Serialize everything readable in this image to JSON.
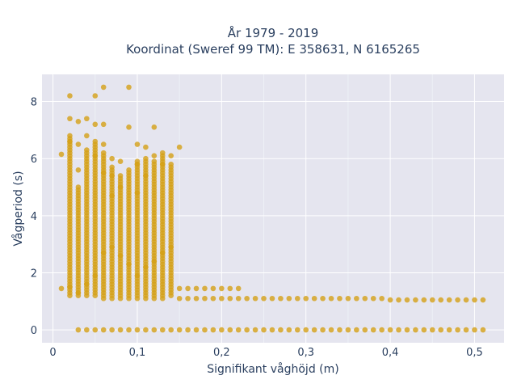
{
  "chart_data": {
    "type": "scatter",
    "title_line1": "År 1979 - 2019",
    "title_line2": "Koordinat (Sweref 99 TM): E 358631, N 6165265",
    "xlabel": "Signifikant våghöjd (m)",
    "ylabel": "Vågperiod (s)",
    "xlim": [
      -0.013,
      0.535
    ],
    "ylim": [
      -0.45,
      8.95
    ],
    "x_ticks": [
      0,
      0.1,
      0.2,
      0.3,
      0.4,
      0.5
    ],
    "x_tick_labels": [
      "0",
      "0,1",
      "0,2",
      "0,3",
      "0,4",
      "0,5"
    ],
    "y_ticks": [
      0,
      2,
      4,
      6,
      8
    ],
    "y_tick_labels": [
      "0",
      "2",
      "4",
      "6",
      "8"
    ],
    "grid": true,
    "marker_color": "#d4a017",
    "plot_bg": "#e5e5ef",
    "series": [
      {
        "x": [
          0.01,
          0.02,
          0.02,
          0.02,
          0.03,
          0.03,
          0.03,
          0.04,
          0.04,
          0.05,
          0.05,
          0.05,
          0.06,
          0.06,
          0.06,
          0.06,
          0.07,
          0.07,
          0.07,
          0.08,
          0.08,
          0.09,
          0.09,
          0.1,
          0.1,
          0.1,
          0.11,
          0.11,
          0.12,
          0.12,
          0.13,
          0.14,
          0.15,
          0.01,
          0.02,
          0.03,
          0.04,
          0.05,
          0.06,
          0.07,
          0.08,
          0.09,
          0.1,
          0.11,
          0.12,
          0.13,
          0.14,
          0.15,
          0.16,
          0.17,
          0.18,
          0.19,
          0.2,
          0.21,
          0.22,
          0.15,
          0.16,
          0.17,
          0.18,
          0.19,
          0.2,
          0.21,
          0.22,
          0.23,
          0.24,
          0.25,
          0.26,
          0.27,
          0.28,
          0.29,
          0.3,
          0.31,
          0.32,
          0.33,
          0.34,
          0.35,
          0.36,
          0.37,
          0.38,
          0.39,
          0.4,
          0.41,
          0.42,
          0.43,
          0.44,
          0.45,
          0.46,
          0.47,
          0.48,
          0.49,
          0.5,
          0.51,
          0.03,
          0.04,
          0.05,
          0.06,
          0.07,
          0.08,
          0.09,
          0.1,
          0.11,
          0.12,
          0.13,
          0.14,
          0.15,
          0.16,
          0.17,
          0.18,
          0.19,
          0.2,
          0.21,
          0.22,
          0.23,
          0.24,
          0.25,
          0.26,
          0.27,
          0.28,
          0.29,
          0.3,
          0.31,
          0.32,
          0.33,
          0.34,
          0.35,
          0.36,
          0.37,
          0.38,
          0.39,
          0.4,
          0.41,
          0.42,
          0.43,
          0.44,
          0.45,
          0.46,
          0.47,
          0.48,
          0.49,
          0.5,
          0.51
        ],
        "y": [
          6.15,
          8.2,
          7.4,
          6.6,
          7.3,
          6.5,
          5.6,
          7.4,
          6.8,
          8.2,
          7.2,
          6.1,
          8.5,
          7.2,
          6.5,
          5.5,
          6.0,
          5.4,
          4.7,
          5.9,
          5.0,
          8.5,
          7.1,
          6.5,
          5.8,
          4.8,
          6.4,
          5.4,
          7.1,
          6.1,
          5.8,
          6.1,
          6.4,
          1.45,
          1.5,
          1.3,
          1.6,
          1.9,
          2.7,
          2.9,
          2.6,
          2.3,
          1.9,
          2.2,
          2.4,
          2.7,
          2.9,
          1.45,
          1.45,
          1.45,
          1.45,
          1.45,
          1.45,
          1.45,
          1.45,
          1.1,
          1.1,
          1.1,
          1.1,
          1.1,
          1.1,
          1.1,
          1.1,
          1.1,
          1.1,
          1.1,
          1.1,
          1.1,
          1.1,
          1.1,
          1.1,
          1.1,
          1.1,
          1.1,
          1.1,
          1.1,
          1.1,
          1.1,
          1.1,
          1.1,
          1.05,
          1.05,
          1.05,
          1.05,
          1.05,
          1.05,
          1.05,
          1.05,
          1.05,
          1.05,
          1.05,
          1.05,
          0,
          0,
          0,
          0,
          0,
          0,
          0,
          0,
          0,
          0,
          0,
          0,
          0,
          0,
          0,
          0,
          0,
          0,
          0,
          0,
          0,
          0,
          0,
          0,
          0,
          0,
          0,
          0,
          0,
          0,
          0,
          0,
          0,
          0,
          0,
          0,
          0,
          0,
          0,
          0,
          0,
          0,
          0,
          0,
          0,
          0,
          0,
          0,
          0
        ]
      }
    ],
    "dense_columns": [
      {
        "x": 0.02,
        "y_from": 1.2,
        "y_to": 6.8
      },
      {
        "x": 0.03,
        "y_from": 1.2,
        "y_to": 5.0
      },
      {
        "x": 0.04,
        "y_from": 1.2,
        "y_to": 6.3
      },
      {
        "x": 0.05,
        "y_from": 1.2,
        "y_to": 6.6
      },
      {
        "x": 0.06,
        "y_from": 1.1,
        "y_to": 6.2
      },
      {
        "x": 0.07,
        "y_from": 1.1,
        "y_to": 5.7
      },
      {
        "x": 0.08,
        "y_from": 1.1,
        "y_to": 5.4
      },
      {
        "x": 0.09,
        "y_from": 1.1,
        "y_to": 5.6
      },
      {
        "x": 0.1,
        "y_from": 1.1,
        "y_to": 5.9
      },
      {
        "x": 0.11,
        "y_from": 1.1,
        "y_to": 6.0
      },
      {
        "x": 0.12,
        "y_from": 1.1,
        "y_to": 5.9
      },
      {
        "x": 0.13,
        "y_from": 1.1,
        "y_to": 6.2
      },
      {
        "x": 0.14,
        "y_from": 1.2,
        "y_to": 5.8
      }
    ]
  }
}
